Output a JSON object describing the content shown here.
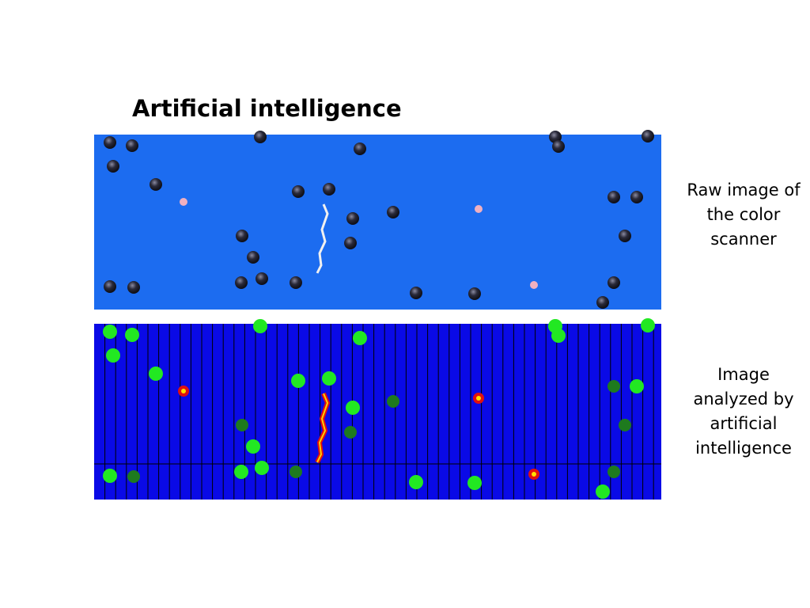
{
  "title": "Artificial intelligence",
  "captions": [
    {
      "lines": [
        "Raw image of",
        "the color",
        "scanner"
      ]
    },
    {
      "lines": [
        "Image",
        "analyzed by",
        "artificial",
        "intelligence"
      ]
    }
  ]
}
